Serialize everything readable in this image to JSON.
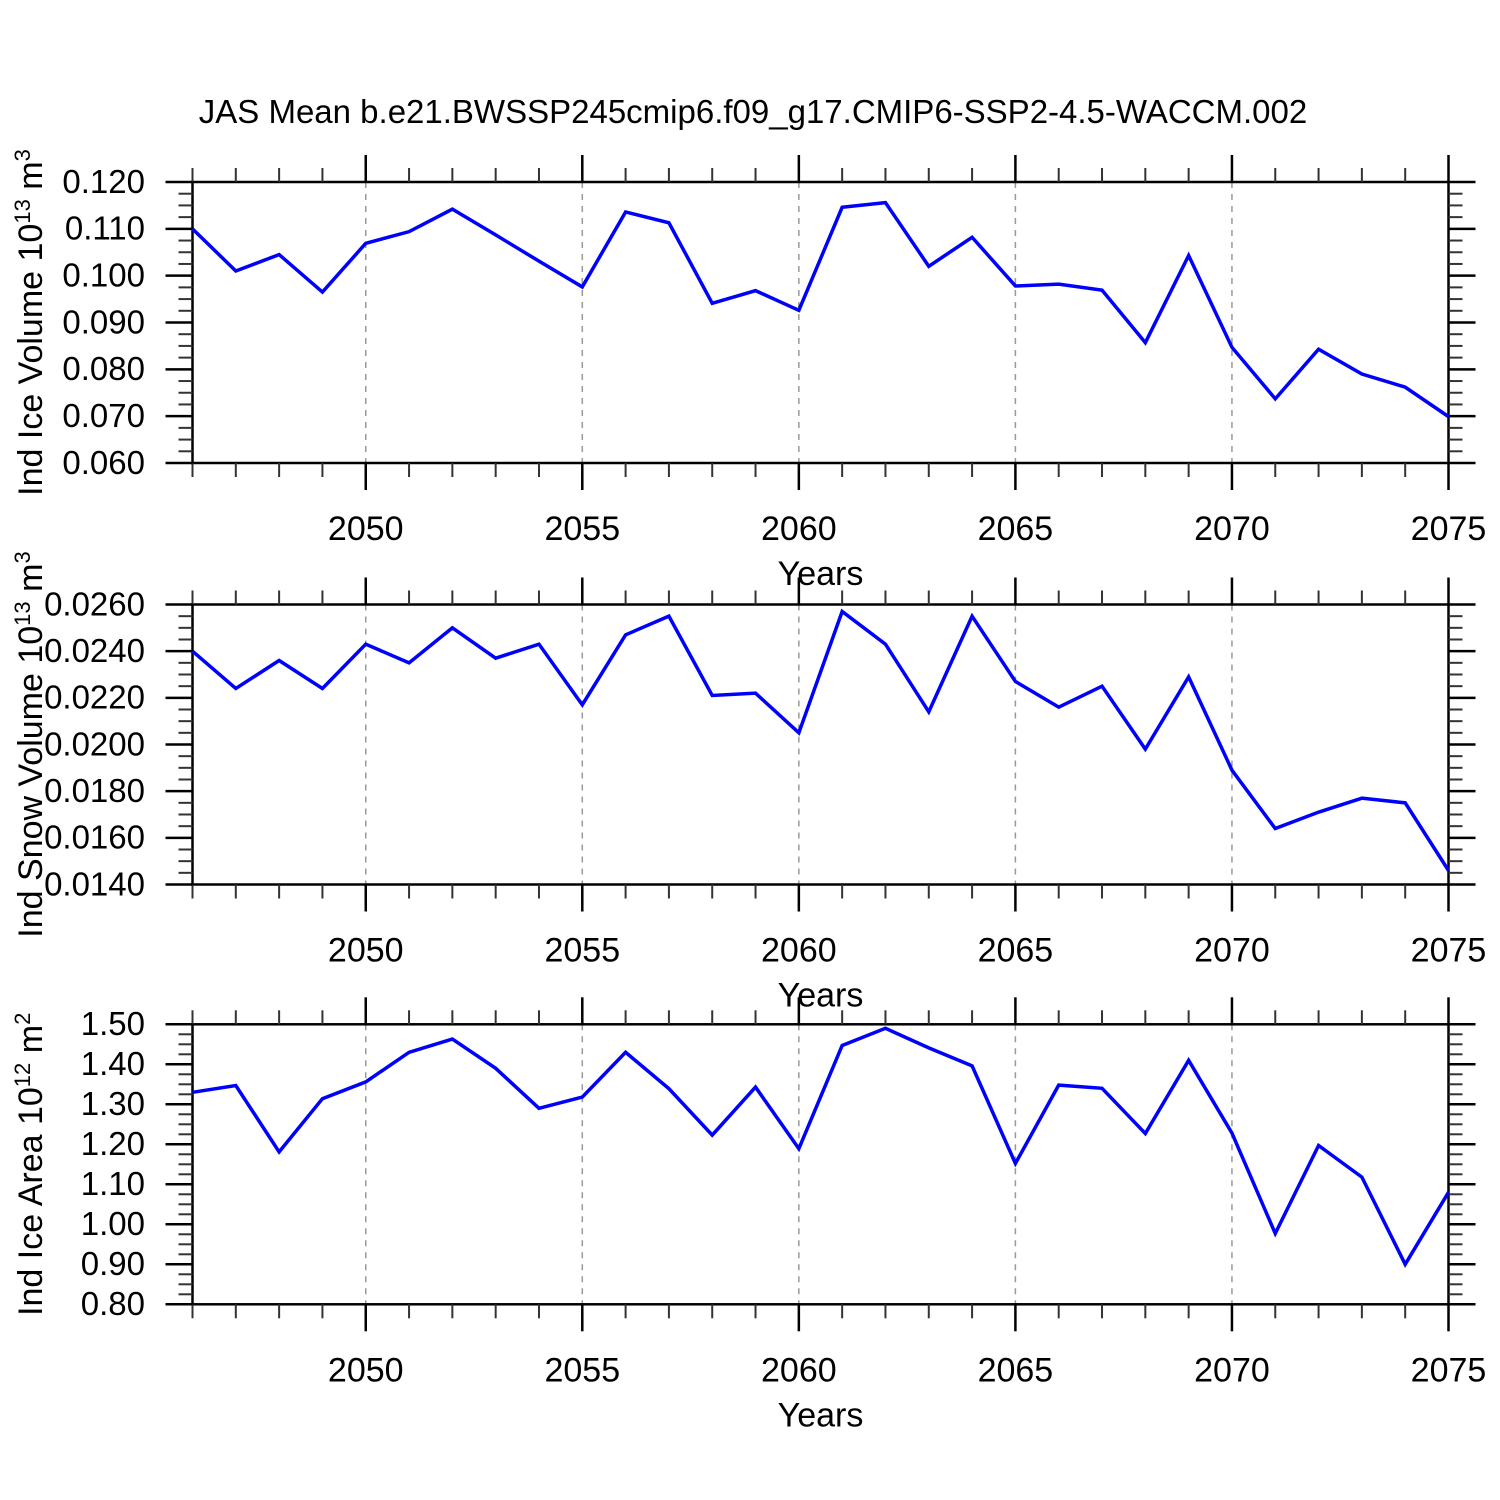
{
  "title": "JAS Mean b.e21.BWSSP245cmip6.f09_g17.CMIP6-SSP2-4.5-WACCM.002",
  "line_color": "#0000ff",
  "grid_color": "#999999",
  "axis_color": "#000000",
  "minor_tick_color": "#333333",
  "chart_data": [
    {
      "type": "line",
      "panel": "ice-volume",
      "ylabel_plain": "Ind Ice Volume 10^13 m^3",
      "ylabel_parts": [
        {
          "t": "Ind Ice Volume 10"
        },
        {
          "t": "13",
          "sup": true
        },
        {
          "t": " m"
        },
        {
          "t": "3",
          "sup": true
        }
      ],
      "xlabel": "Years",
      "x": [
        2046,
        2047,
        2048,
        2049,
        2050,
        2051,
        2052,
        2053,
        2054,
        2055,
        2056,
        2057,
        2058,
        2059,
        2060,
        2061,
        2062,
        2063,
        2064,
        2065,
        2066,
        2067,
        2068,
        2069,
        2070,
        2071,
        2072,
        2073,
        2074,
        2075
      ],
      "values": [
        0.11,
        0.101,
        0.1045,
        0.0965,
        0.1069,
        0.1094,
        0.1142,
        0.1087,
        0.1031,
        0.0976,
        0.1136,
        0.1113,
        0.0941,
        0.0968,
        0.0926,
        0.1146,
        0.1156,
        0.102,
        0.1082,
        0.0978,
        0.0982,
        0.0969,
        0.0857,
        0.1043,
        0.0847,
        0.0737,
        0.0843,
        0.079,
        0.0762,
        0.0699
      ],
      "ylim": [
        0.06,
        0.12
      ],
      "yticks": [
        0.06,
        0.07,
        0.08,
        0.09,
        0.1,
        0.11,
        0.12
      ],
      "ytick_labels": [
        "0.060",
        "0.070",
        "0.080",
        "0.090",
        "0.100",
        "0.110",
        "0.120"
      ],
      "y_minor_step": 0.0025,
      "xlim": [
        2046,
        2075
      ],
      "xticks": [
        2050,
        2055,
        2060,
        2065,
        2070,
        2075
      ],
      "xtick_labels": [
        "2050",
        "2055",
        "2060",
        "2065",
        "2070",
        "2075"
      ],
      "x_minor_step": 1,
      "grid_x": [
        2050,
        2055,
        2060,
        2065,
        2070
      ],
      "grid_on": "x-major-dashed"
    },
    {
      "type": "line",
      "panel": "snow-volume",
      "ylabel_plain": "Ind Snow Volume 10^13 m^3",
      "ylabel_parts": [
        {
          "t": "Ind Snow Volume 10"
        },
        {
          "t": "13",
          "sup": true
        },
        {
          "t": " m"
        },
        {
          "t": "3",
          "sup": true
        }
      ],
      "xlabel": "Years",
      "x": [
        2046,
        2047,
        2048,
        2049,
        2050,
        2051,
        2052,
        2053,
        2054,
        2055,
        2056,
        2057,
        2058,
        2059,
        2060,
        2061,
        2062,
        2063,
        2064,
        2065,
        2066,
        2067,
        2068,
        2069,
        2070,
        2071,
        2072,
        2073,
        2074,
        2075
      ],
      "values": [
        0.024,
        0.0224,
        0.0236,
        0.0224,
        0.0243,
        0.0235,
        0.025,
        0.0237,
        0.0243,
        0.0217,
        0.0247,
        0.0255,
        0.0221,
        0.0222,
        0.0205,
        0.0257,
        0.0243,
        0.0214,
        0.0255,
        0.0227,
        0.0216,
        0.0225,
        0.0198,
        0.0229,
        0.0189,
        0.0164,
        0.0171,
        0.0177,
        0.0175,
        0.0146
      ],
      "ylim": [
        0.014,
        0.026
      ],
      "yticks": [
        0.014,
        0.016,
        0.018,
        0.02,
        0.022,
        0.024,
        0.026
      ],
      "ytick_labels": [
        "0.0140",
        "0.0160",
        "0.0180",
        "0.0200",
        "0.0220",
        "0.0240",
        "0.0260"
      ],
      "y_minor_step": 0.0005,
      "xlim": [
        2046,
        2075
      ],
      "xticks": [
        2050,
        2055,
        2060,
        2065,
        2070,
        2075
      ],
      "xtick_labels": [
        "2050",
        "2055",
        "2060",
        "2065",
        "2070",
        "2075"
      ],
      "x_minor_step": 1,
      "grid_x": [
        2050,
        2055,
        2060,
        2065,
        2070
      ],
      "grid_on": "x-major-dashed"
    },
    {
      "type": "line",
      "panel": "ice-area",
      "ylabel_plain": "Ind Ice Area 10^12 m^2",
      "ylabel_parts": [
        {
          "t": "Ind Ice Area 10"
        },
        {
          "t": "12",
          "sup": true
        },
        {
          "t": " m"
        },
        {
          "t": "2",
          "sup": true
        }
      ],
      "xlabel": "Years",
      "x": [
        2046,
        2047,
        2048,
        2049,
        2050,
        2051,
        2052,
        2053,
        2054,
        2055,
        2056,
        2057,
        2058,
        2059,
        2060,
        2061,
        2062,
        2063,
        2064,
        2065,
        2066,
        2067,
        2068,
        2069,
        2070,
        2071,
        2072,
        2073,
        2074,
        2075
      ],
      "values": [
        1.33,
        1.347,
        1.181,
        1.314,
        1.356,
        1.43,
        1.463,
        1.39,
        1.29,
        1.318,
        1.43,
        1.339,
        1.223,
        1.343,
        1.189,
        1.447,
        1.49,
        1.441,
        1.396,
        1.152,
        1.348,
        1.34,
        1.227,
        1.41,
        1.228,
        0.977,
        1.197,
        1.118,
        0.9,
        1.08
      ],
      "ylim": [
        0.8,
        1.5
      ],
      "yticks": [
        0.8,
        0.9,
        1.0,
        1.1,
        1.2,
        1.3,
        1.4,
        1.5
      ],
      "ytick_labels": [
        "0.80",
        "0.90",
        "1.00",
        "1.10",
        "1.20",
        "1.30",
        "1.40",
        "1.50"
      ],
      "y_minor_step": 0.025,
      "xlim": [
        2046,
        2075
      ],
      "xticks": [
        2050,
        2055,
        2060,
        2065,
        2070,
        2075
      ],
      "xtick_labels": [
        "2050",
        "2055",
        "2060",
        "2065",
        "2070",
        "2075"
      ],
      "x_minor_step": 1,
      "grid_x": [
        2050,
        2055,
        2060,
        2065,
        2070
      ],
      "grid_on": "x-major-dashed"
    }
  ]
}
